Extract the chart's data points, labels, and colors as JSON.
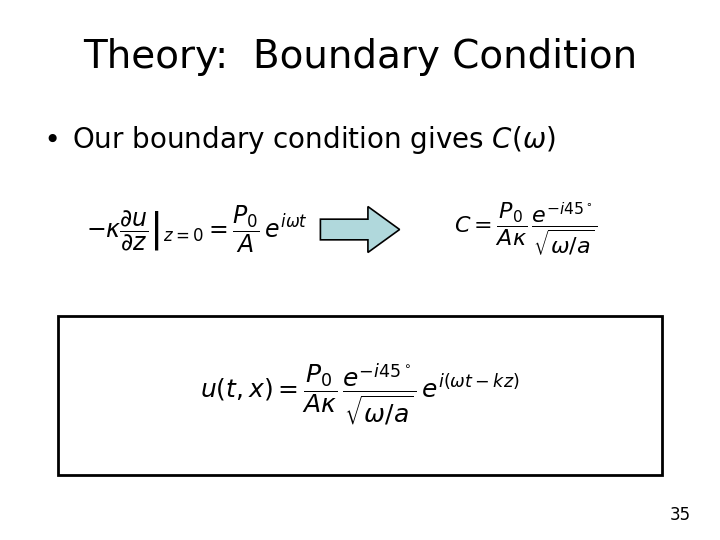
{
  "title": "Theory:  Boundary Condition",
  "bullet": "Our boundary condition gives C(ω)",
  "eq1": "$-\\kappa\\left.\\dfrac{\\partial u}{\\partial z}\\right|_{z=0} = \\dfrac{P_0}{A}\\,e^{i\\omega t}$",
  "eq2": "$C = \\dfrac{P_0}{A\\kappa}\\,\\dfrac{e^{-i45^\\circ}}{\\sqrt{\\omega/a}}$",
  "eq3": "$u(t,x) = \\dfrac{P_0}{A\\kappa}\\,\\dfrac{e^{-i45^\\circ}}{\\sqrt{\\omega/a}}\\,e^{i(\\omega t - kz)}$",
  "page_number": "35",
  "background_color": "#ffffff",
  "title_fontsize": 28,
  "bullet_fontsize": 20,
  "eq_fontsize": 18,
  "box_color": "#000000",
  "arrow_fill": "#b0d8dc",
  "arrow_edge": "#000000",
  "text_color": "#000000",
  "page_color": "#000000"
}
